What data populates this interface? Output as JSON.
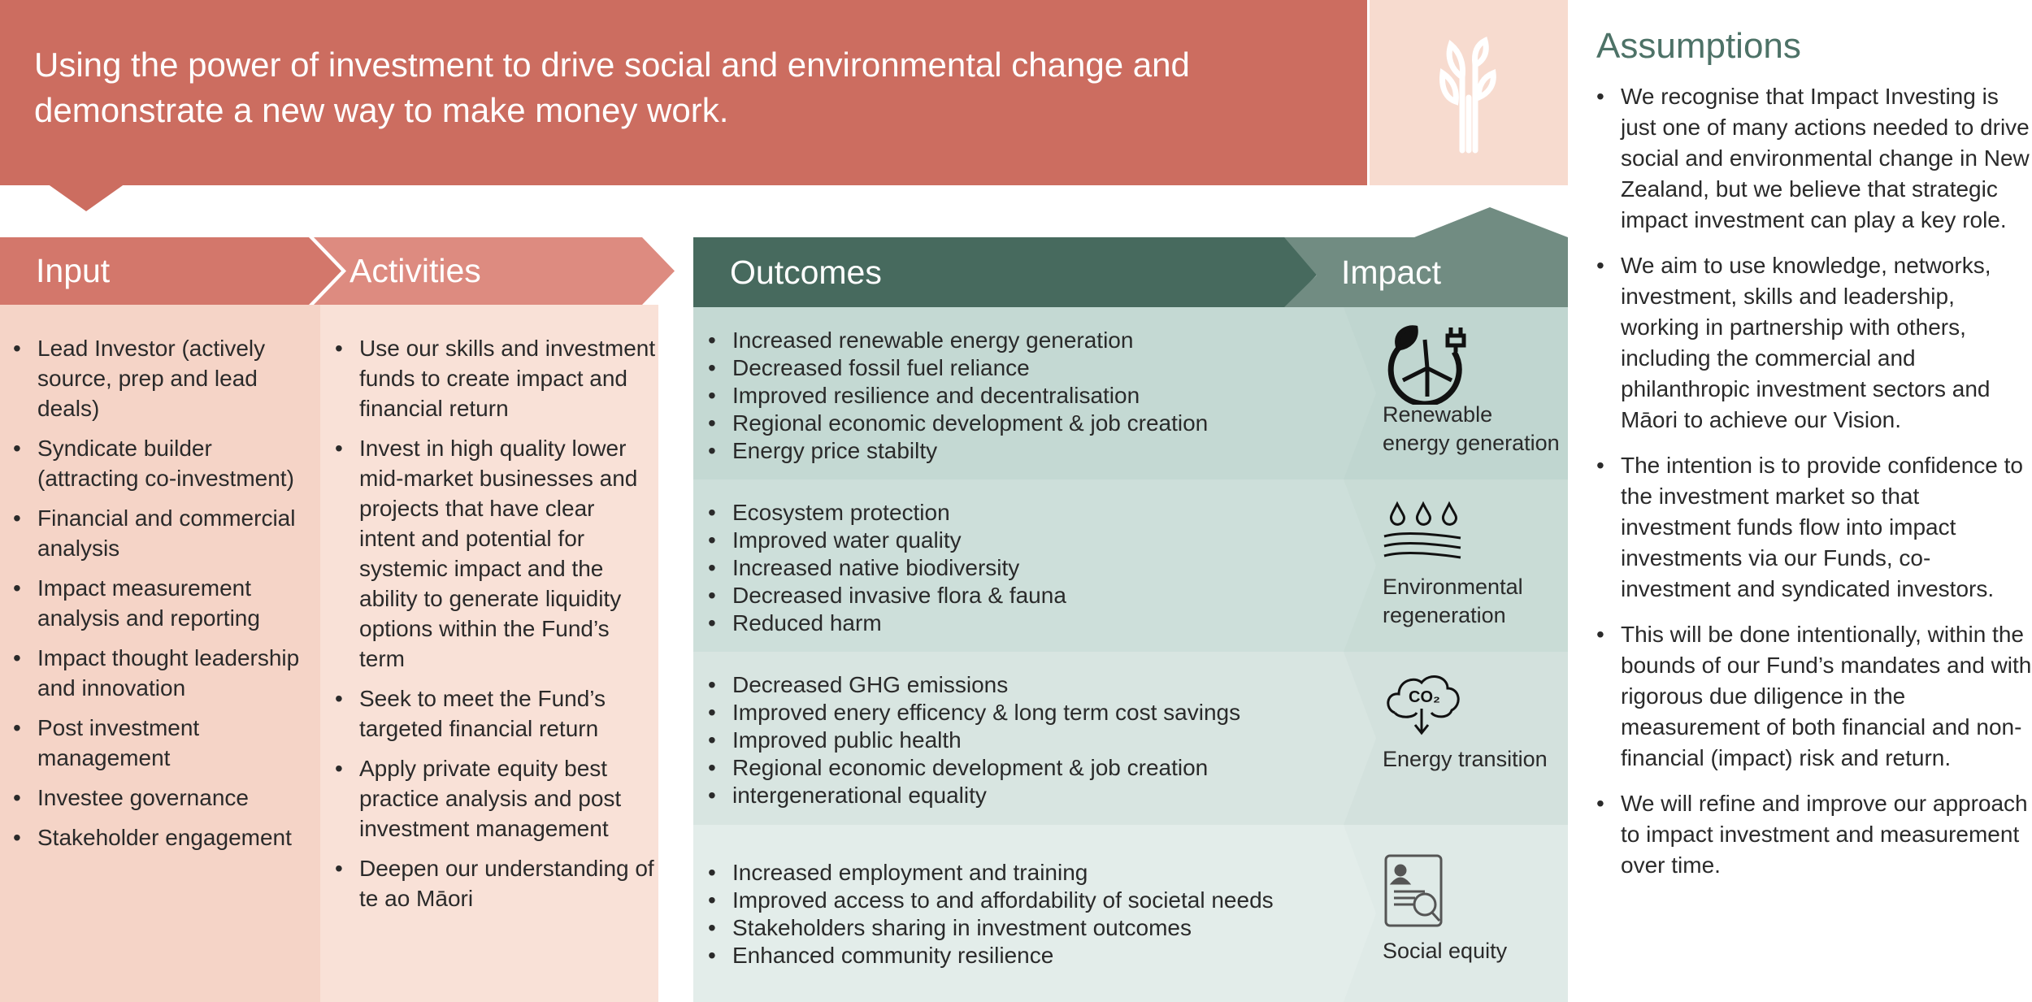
{
  "banner": {
    "text": "Using the power of investment to drive social and environmental change and demonstrate a new way to make money work.",
    "icon": "sprout-icon"
  },
  "colors": {
    "banner": "#cc6d60",
    "input": "#d3776b",
    "activities": "#dd8b80",
    "outcomes": "#476a5e",
    "impact": "#718c82",
    "assumptions_title": "#4d7267"
  },
  "input": {
    "title": "Input",
    "items": [
      "Lead Investor (actively source, prep and lead deals)",
      "Syndicate builder (attracting co-investment)",
      "Financial and commercial analysis",
      "Impact measurement analysis and reporting",
      "Impact thought leadership and innovation",
      "Post investment management",
      "Investee governance",
      "Stakeholder engagement"
    ]
  },
  "activities": {
    "title": "Activities",
    "items": [
      "Use our skills and investment funds to create impact and financial return",
      "Invest in high quality lower mid-market businesses and projects that have clear intent and potential for systemic impact and the ability to generate liquidity options within the Fund’s term",
      "Seek to meet the Fund’s targeted financial return",
      "Apply private equity best practice analysis and post investment management",
      "Deepen our understanding of te ao Māori"
    ]
  },
  "outcomes": {
    "title": "Outcomes",
    "impact_title": "Impact",
    "rows": [
      {
        "items": [
          "Increased renewable energy generation",
          "Decreased fossil fuel reliance",
          "Improved resilience and decentralisation",
          "Regional economic development & job creation",
          "Energy price stabilty"
        ],
        "impact": "Renewable energy generation",
        "icon": "wind-turbine-plug-icon"
      },
      {
        "items": [
          "Ecosystem protection",
          "Improved water quality",
          "Increased native biodiversity",
          "Decreased invasive flora & fauna",
          "Reduced harm"
        ],
        "impact": "Environmental regeneration",
        "icon": "water-drops-waves-icon"
      },
      {
        "items": [
          "Decreased GHG emissions",
          "Improved enery efficency & long term cost savings",
          "Improved public health",
          "Regional economic development & job creation",
          "intergenerational equality"
        ],
        "impact": "Energy transition",
        "icon": "co2-cloud-icon",
        "co2": "CO₂"
      },
      {
        "items": [
          "Increased employment and training",
          "Improved access to and affordability of societal needs",
          "Stakeholders sharing in investment outcomes",
          "Enhanced community resilience"
        ],
        "impact": "Social equity",
        "icon": "profile-search-icon"
      }
    ]
  },
  "assumptions": {
    "title": "Assumptions",
    "items": [
      "We recognise that Impact Investing is just one of many actions needed to drive social and environmental change in New Zealand, but we believe that strategic impact investment can play a key role.",
      "We aim to use knowledge, networks, investment, skills and leadership, working in partnership with others, including the commercial and philanthropic investment sectors and Māori to achieve our Vision.",
      "The intention is to provide confidence to the investment market so that investment funds flow into impact investments via our Funds, co-investment and syndicated investors.",
      "This will be done intentionally, within the bounds of our Fund’s mandates and with rigorous due diligence in the measurement of both financial and non-financial (impact) risk and return.",
      "We will refine and improve our approach to impact investment and measurement over time."
    ]
  }
}
